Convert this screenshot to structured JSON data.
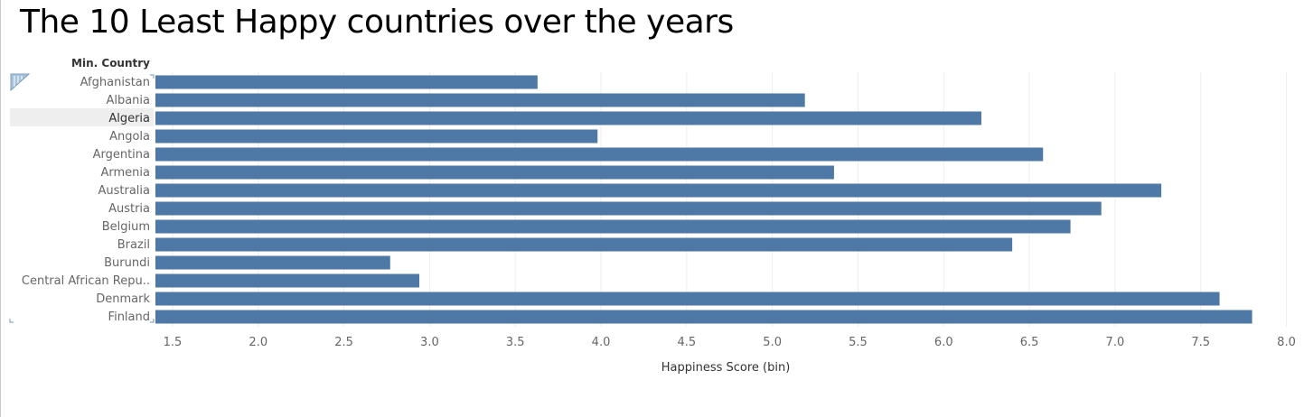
{
  "title": "The 10 Least Happy countries over the years",
  "colors": {
    "bar": "#4e79a7",
    "grid": "#eeeeee",
    "selected_row": "#eeeeee"
  },
  "chart_data": {
    "type": "bar",
    "orientation": "horizontal",
    "row_header": "Min. Country",
    "xlabel": "Happiness Score (bin)",
    "xlim": [
      1.4,
      8.05
    ],
    "xticks": [
      "1.5",
      "2.0",
      "2.5",
      "3.0",
      "3.5",
      "4.0",
      "4.5",
      "5.0",
      "5.5",
      "6.0",
      "6.5",
      "7.0",
      "7.5",
      "8.0"
    ],
    "grid": true,
    "selected_category": "Algeria",
    "categories": [
      "Afghanistan",
      "Albania",
      "Algeria",
      "Angola",
      "Argentina",
      "Armenia",
      "Australia",
      "Austria",
      "Belgium",
      "Brazil",
      "Burundi",
      "Central African Repu..",
      "Denmark",
      "Finland"
    ],
    "values": [
      3.63,
      5.19,
      6.22,
      3.98,
      6.58,
      5.36,
      7.27,
      6.92,
      6.74,
      6.4,
      2.77,
      2.94,
      7.61,
      7.8
    ]
  }
}
